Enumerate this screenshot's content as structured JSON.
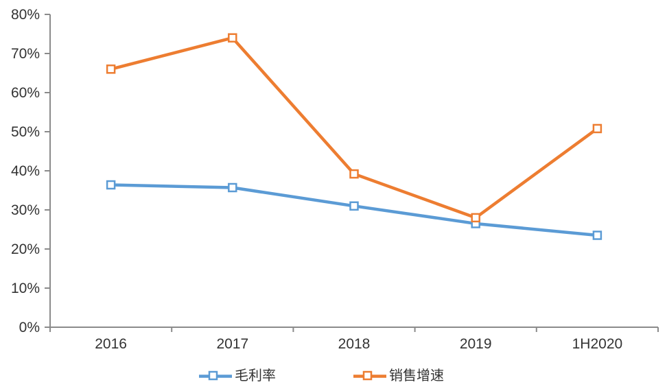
{
  "chart_data": {
    "type": "line",
    "categories": [
      "2016",
      "2017",
      "2018",
      "2019",
      "1H2020"
    ],
    "series": [
      {
        "name": "毛利率",
        "color": "#5B9BD5",
        "values": [
          36.4,
          35.7,
          31.0,
          26.5,
          23.5
        ]
      },
      {
        "name": "销售增速",
        "color": "#ED7D31",
        "values": [
          66.0,
          74.0,
          39.2,
          28.0,
          50.8
        ]
      }
    ],
    "ylim": [
      0,
      80
    ],
    "ytick_step": 10,
    "ytick_suffix": "%",
    "grid": false,
    "legend_position": "bottom",
    "marker": "open-square",
    "axis_color": "#8A8A8A",
    "text_color": "#333333",
    "background": "#FFFFFF"
  }
}
